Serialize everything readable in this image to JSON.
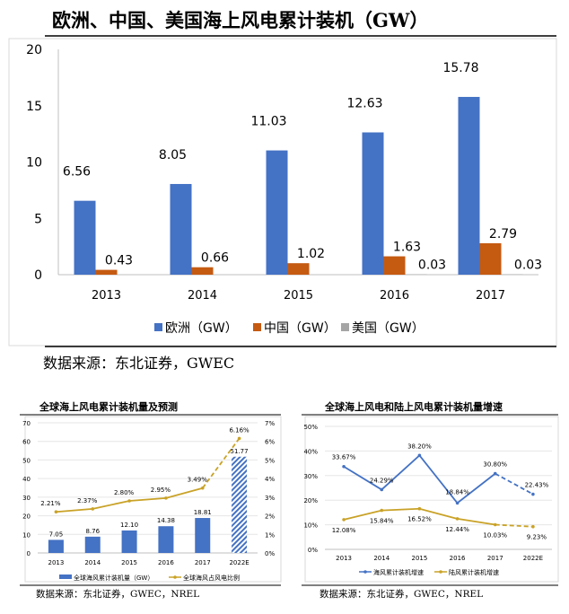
{
  "colors": {
    "blue": "#4472C4",
    "orange": "#C55A11",
    "gray": "#A5A5A5",
    "gold": "#C9A227"
  },
  "chart_data": [
    {
      "type": "bar",
      "title": "欧洲、中国、美国海上风电累计装机（GW）",
      "categories": [
        "2013",
        "2014",
        "2015",
        "2016",
        "2017"
      ],
      "ylim": [
        0,
        20
      ],
      "yticks": [
        "0",
        "5",
        "10",
        "15",
        "20"
      ],
      "grid": false,
      "legend": "bottom",
      "series": [
        {
          "name": "欧洲（GW）",
          "values": [
            6.56,
            8.05,
            11.03,
            12.63,
            15.78
          ],
          "labels": [
            "6.56",
            "8.05",
            "11.03",
            "12.63",
            "15.78"
          ]
        },
        {
          "name": "中国（GW）",
          "values": [
            0.43,
            0.66,
            1.02,
            1.63,
            2.79
          ],
          "labels": [
            "0.43",
            "0.66",
            "1.02",
            "1.63",
            "2.79"
          ]
        },
        {
          "name": "美国（GW）",
          "values": [
            0,
            0,
            0,
            0.03,
            0.03
          ],
          "labels": [
            "",
            "",
            "",
            "0.03",
            "0.03"
          ]
        }
      ],
      "source": "数据来源：东北证券，GWEC"
    },
    {
      "type": "bar+line",
      "title": "全球海上风电累计装机量及预测",
      "categories": [
        "2013",
        "2014",
        "2015",
        "2016",
        "2017",
        "2022E"
      ],
      "ylim": [
        0,
        70
      ],
      "yticks": [
        "0",
        "10",
        "20",
        "30",
        "40",
        "50",
        "60",
        "70"
      ],
      "y2lim": [
        0,
        7
      ],
      "y2ticks": [
        "0%",
        "1%",
        "2%",
        "3%",
        "4%",
        "5%",
        "6%",
        "7%"
      ],
      "grid": true,
      "legend": "bottom",
      "series": [
        {
          "name": "全球海风累计装机量（GW）",
          "type": "bar",
          "values": [
            7.05,
            8.76,
            12.1,
            14.38,
            18.81,
            51.77
          ],
          "labels": [
            "7.05",
            "8.76",
            "12.10",
            "14.38",
            "18.81",
            "51.77"
          ]
        },
        {
          "name": "全球海风占风电比例",
          "type": "line",
          "axis": "right",
          "values": [
            2.21,
            2.37,
            2.8,
            2.95,
            3.49,
            6.16
          ],
          "labels": [
            "2.21%",
            "2.37%",
            "2.80%",
            "2.95%",
            "3.49%",
            "6.16%"
          ]
        }
      ],
      "forecast_category": "2022E",
      "source": "数据来源：东北证券，GWEC，NREL"
    },
    {
      "type": "line",
      "title": "全球海上风电和陆上风电累计装机量增速",
      "categories": [
        "2013",
        "2014",
        "2015",
        "2016",
        "2017",
        "2022E"
      ],
      "ylim": [
        0,
        50
      ],
      "yticks": [
        "0%",
        "10%",
        "20%",
        "30%",
        "40%",
        "50%"
      ],
      "grid": true,
      "legend": "bottom",
      "series": [
        {
          "name": "海风累计装机增速",
          "values": [
            33.67,
            24.29,
            38.2,
            18.84,
            30.8,
            22.43
          ],
          "labels": [
            "33.67%",
            "24.29%",
            "38.20%",
            "18.84%",
            "30.80%",
            "22.43%"
          ]
        },
        {
          "name": "陆风累计装机增速",
          "values": [
            12.08,
            15.84,
            16.52,
            12.44,
            10.03,
            9.23
          ],
          "labels": [
            "12.08%",
            "15.84%",
            "16.52%",
            "12.44%",
            "10.03%",
            "9.23%"
          ]
        }
      ],
      "forecast_category": "2022E",
      "source": "数据来源：东北证券，GWEC，NREL"
    }
  ]
}
